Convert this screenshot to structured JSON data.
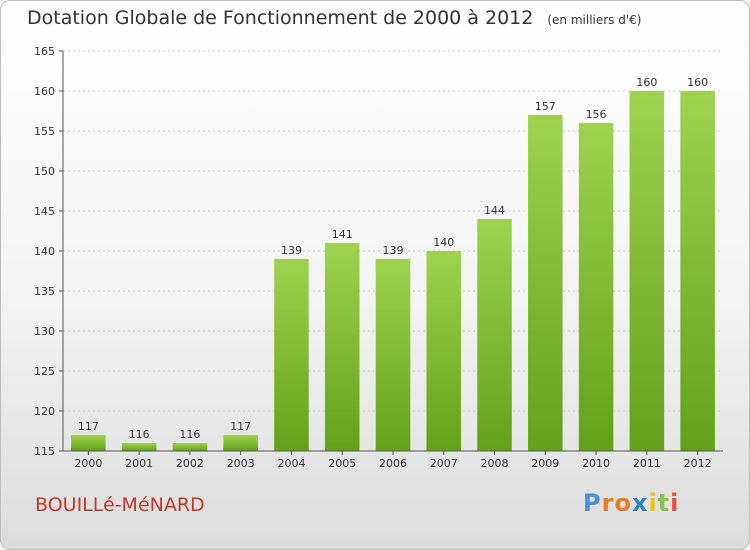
{
  "title": "Dotation Globale de Fonctionnement de 2000 à 2012",
  "unit_label": "(en milliers d'€)",
  "commune": "BOUILLé-MéNARD",
  "logo": {
    "text": "Proxiti",
    "letter_colors": [
      "#4a90d9",
      "#e67e22",
      "#e67e22",
      "#2e86c1",
      "#f1c40f",
      "#8bc34a",
      "#e74c3c"
    ]
  },
  "colors": {
    "bar_top": "#9fd24f",
    "bar_bottom": "#63a11a",
    "axis": "#555555",
    "grid": "#d0d0d0"
  },
  "chart_data": {
    "type": "bar",
    "title": "Dotation Globale de Fonctionnement de 2000 à 2012",
    "xlabel": "",
    "ylabel": "",
    "ylim": [
      115,
      165
    ],
    "yticks": [
      115,
      120,
      125,
      130,
      135,
      140,
      145,
      150,
      155,
      160,
      165
    ],
    "categories": [
      "2000",
      "2001",
      "2002",
      "2003",
      "2004",
      "2005",
      "2006",
      "2007",
      "2008",
      "2009",
      "2010",
      "2011",
      "2012"
    ],
    "values": [
      117,
      116,
      116,
      117,
      139,
      141,
      139,
      140,
      144,
      157,
      156,
      160,
      160
    ],
    "grid": true,
    "legend": "none"
  }
}
